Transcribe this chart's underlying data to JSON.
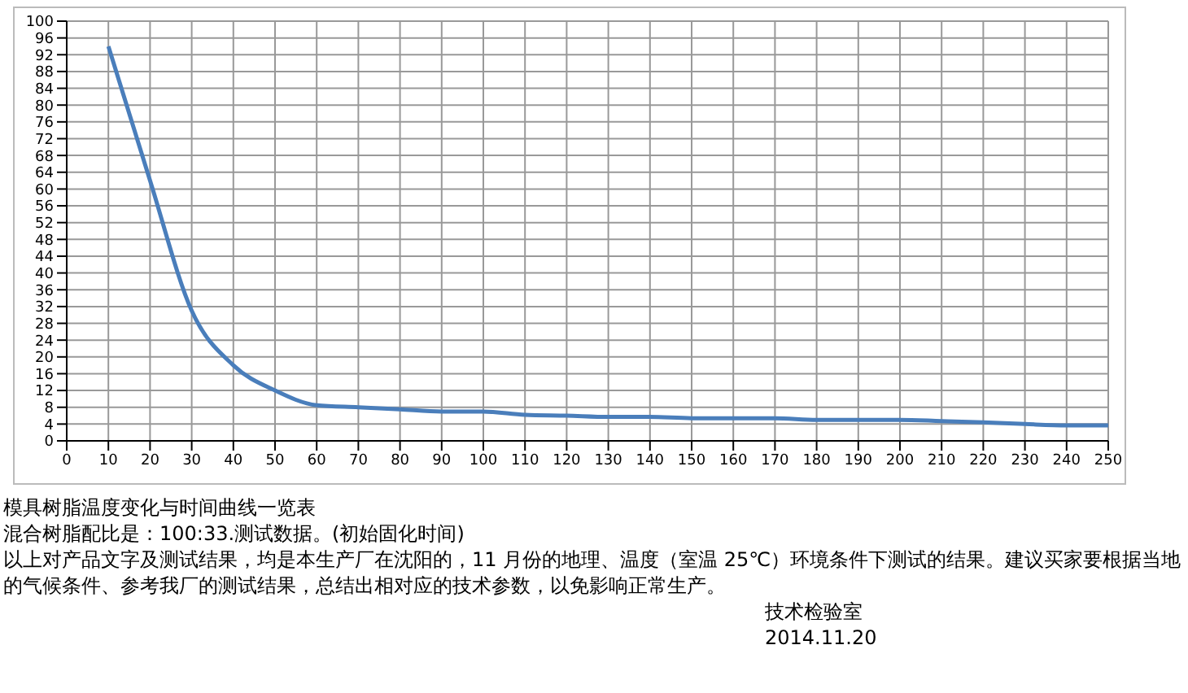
{
  "chart_data": {
    "type": "line",
    "title": "模具树脂温度变化与时间曲线一览表",
    "annotations": [
      "混合树脂配比是：100:33.测试数据。(初始固化时间)",
      "以上对产品文字及测试结果，均是本生产厂在沈阳的，11 月份的地理、温度（室温 25℃）环境条件下测试的结果。建议买家要根据当地的气候条件、参考我厂的测试结果，总结出相对应的技术参数，以免影响正常生产。",
      "技术检验室",
      "2014.11.20"
    ],
    "x": [
      10,
      20,
      30,
      40,
      50,
      60,
      70,
      80,
      90,
      100,
      110,
      120,
      130,
      140,
      150,
      160,
      170,
      180,
      190,
      200,
      210,
      220,
      230,
      240,
      250
    ],
    "series": [
      {
        "color": "#4a7ebb",
        "values": [
          94,
          62,
          31,
          18,
          12,
          8.5,
          8,
          7.5,
          7,
          7,
          6.2,
          6,
          5.7,
          5.7,
          5.4,
          5.4,
          5.4,
          5,
          5,
          5,
          4.7,
          4.4,
          4,
          3.7,
          3.7
        ]
      }
    ],
    "xlim": [
      0,
      250
    ],
    "xticks": [
      0,
      10,
      20,
      30,
      40,
      50,
      60,
      70,
      80,
      90,
      100,
      110,
      120,
      130,
      140,
      150,
      160,
      170,
      180,
      190,
      200,
      210,
      220,
      230,
      240,
      250
    ],
    "ylim": [
      0,
      100
    ],
    "yticks": [
      0,
      4,
      8,
      12,
      16,
      20,
      24,
      28,
      32,
      36,
      40,
      44,
      48,
      52,
      56,
      60,
      64,
      68,
      72,
      76,
      80,
      84,
      88,
      92,
      96,
      100
    ],
    "grid": true,
    "marker": "none",
    "line_style": "solid",
    "legend": false
  }
}
